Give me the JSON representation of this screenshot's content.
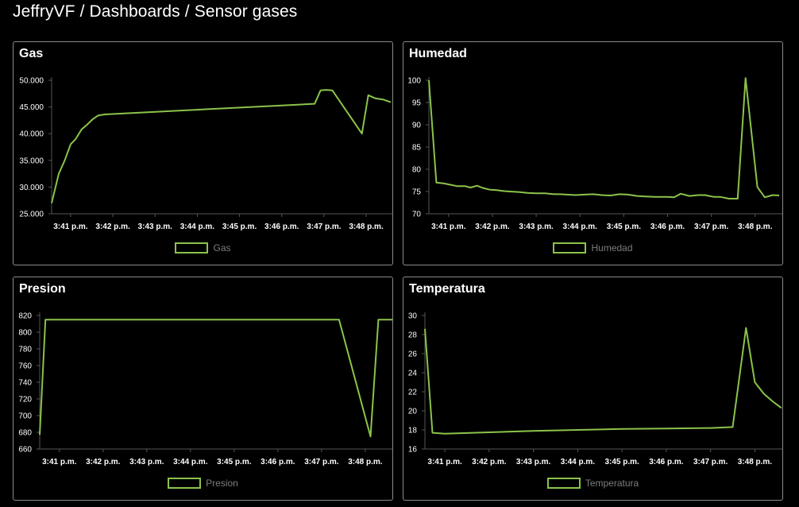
{
  "breadcrumb": {
    "user": "JeffryVF",
    "section": "Dashboards",
    "page": "Sensor gases",
    "separator": "/"
  },
  "colors": {
    "line": "#8bc34a",
    "axis": "#555555",
    "background": "#000000"
  },
  "chart_data": [
    {
      "type": "line",
      "title": "Gas",
      "legend": "Gas",
      "ylim": [
        25,
        50
      ],
      "yticks": [
        "25.000",
        "30.000",
        "35.000",
        "40.000",
        "45.000",
        "50.000"
      ],
      "ytick_values": [
        25,
        30,
        35,
        40,
        45,
        50
      ],
      "xlim": [
        40.55,
        48.62
      ],
      "xticks": [
        "3:41 p.m.",
        "3:42 p.m.",
        "3:43 p.m.",
        "3:44 p.m.",
        "3:45 p.m.",
        "3:46 p.m.",
        "3:47 p.m.",
        "3:48 p.m."
      ],
      "xtick_values": [
        41,
        42,
        43,
        44,
        45,
        46,
        47,
        48
      ],
      "series": [
        {
          "name": "Gas",
          "x": [
            40.55,
            40.72,
            40.86,
            41.0,
            41.12,
            41.26,
            41.38,
            41.52,
            41.65,
            41.8,
            46.78,
            46.92,
            47.05,
            47.2,
            47.9,
            48.05,
            48.22,
            48.4,
            48.58
          ],
          "y": [
            27,
            32.5,
            35,
            38,
            39,
            40.8,
            41.6,
            42.7,
            43.4,
            43.6,
            45.6,
            48.1,
            48.2,
            48.1,
            40,
            47.2,
            46.6,
            46.4,
            45.9
          ]
        }
      ]
    },
    {
      "type": "line",
      "title": "Humedad",
      "legend": "Humedad",
      "ylim": [
        70,
        100
      ],
      "yticks": [
        "70",
        "75",
        "80",
        "85",
        "90",
        "95",
        "100"
      ],
      "ytick_values": [
        70,
        75,
        80,
        85,
        90,
        95,
        100
      ],
      "xlim": [
        40.55,
        48.62
      ],
      "xticks": [
        "3:41 p.m.",
        "3:42 p.m.",
        "3:43 p.m.",
        "3:44 p.m.",
        "3:45 p.m.",
        "3:46 p.m.",
        "3:47 p.m.",
        "3:48 p.m."
      ],
      "xtick_values": [
        41,
        42,
        43,
        44,
        45,
        46,
        47,
        48
      ],
      "series": [
        {
          "name": "Humedad",
          "x": [
            40.55,
            40.72,
            40.9,
            41.05,
            41.2,
            41.38,
            41.5,
            41.65,
            41.78,
            41.95,
            42.1,
            42.25,
            42.4,
            42.6,
            42.8,
            43.0,
            43.2,
            43.4,
            43.55,
            43.7,
            43.9,
            44.1,
            44.3,
            44.5,
            44.7,
            44.9,
            45.1,
            45.3,
            45.5,
            45.7,
            45.85,
            46.0,
            46.15,
            46.3,
            46.5,
            46.7,
            46.85,
            47.05,
            47.2,
            47.4,
            47.6,
            47.78,
            48.05,
            48.22,
            48.4,
            48.55
          ],
          "y": [
            100,
            77,
            76.8,
            76.5,
            76.2,
            76.2,
            75.9,
            76.3,
            75.8,
            75.4,
            75.3,
            75.1,
            75.0,
            74.9,
            74.7,
            74.6,
            74.6,
            74.4,
            74.4,
            74.3,
            74.2,
            74.3,
            74.4,
            74.2,
            74.1,
            74.4,
            74.3,
            74.0,
            73.9,
            73.8,
            73.8,
            73.8,
            73.7,
            74.5,
            74.0,
            74.2,
            74.2,
            73.8,
            73.8,
            73.4,
            73.4,
            100.5,
            76,
            73.7,
            74.2,
            74.1
          ]
        }
      ]
    },
    {
      "type": "line",
      "title": "Presion",
      "legend": "Presion",
      "ylim": [
        660,
        820
      ],
      "yticks": [
        "660",
        "680",
        "700",
        "720",
        "740",
        "760",
        "780",
        "800",
        "820"
      ],
      "ytick_values": [
        660,
        680,
        700,
        720,
        740,
        760,
        780,
        800,
        820
      ],
      "xlim": [
        40.55,
        48.62
      ],
      "xticks": [
        "3:41 p.m.",
        "3:42 p.m.",
        "3:43 p.m.",
        "3:44 p.m.",
        "3:45 p.m.",
        "3:46 p.m.",
        "3:47 p.m.",
        "3:48 p.m."
      ],
      "xtick_values": [
        41,
        42,
        43,
        44,
        45,
        46,
        47,
        48
      ],
      "series": [
        {
          "name": "Presion",
          "x": [
            40.55,
            40.68,
            42.0,
            44.0,
            46.0,
            47.4,
            48.12,
            48.3,
            48.62
          ],
          "y": [
            677,
            815,
            815,
            815,
            815,
            815,
            675,
            815,
            815
          ]
        }
      ]
    },
    {
      "type": "line",
      "title": "Temperatura",
      "legend": "Temperatura",
      "ylim": [
        16,
        30
      ],
      "yticks": [
        "16",
        "18",
        "20",
        "22",
        "24",
        "26",
        "28",
        "30"
      ],
      "ytick_values": [
        16,
        18,
        20,
        22,
        24,
        26,
        28,
        30
      ],
      "xlim": [
        40.55,
        48.62
      ],
      "xticks": [
        "3:41 p.m.",
        "3:42 p.m.",
        "3:43 p.m.",
        "3:44 p.m.",
        "3:45 p.m.",
        "3:46 p.m.",
        "3:47 p.m.",
        "3:48 p.m."
      ],
      "xtick_values": [
        41,
        42,
        43,
        44,
        45,
        46,
        47,
        48
      ],
      "series": [
        {
          "name": "Temperatura",
          "x": [
            40.55,
            40.72,
            41.0,
            42.0,
            43.0,
            44.0,
            45.0,
            46.0,
            47.0,
            47.5,
            47.8,
            48.0,
            48.2,
            48.4,
            48.6
          ],
          "y": [
            28.6,
            17.7,
            17.6,
            17.75,
            17.9,
            18.0,
            18.1,
            18.15,
            18.2,
            18.3,
            28.7,
            23,
            21.8,
            21.0,
            20.3
          ]
        }
      ]
    }
  ]
}
